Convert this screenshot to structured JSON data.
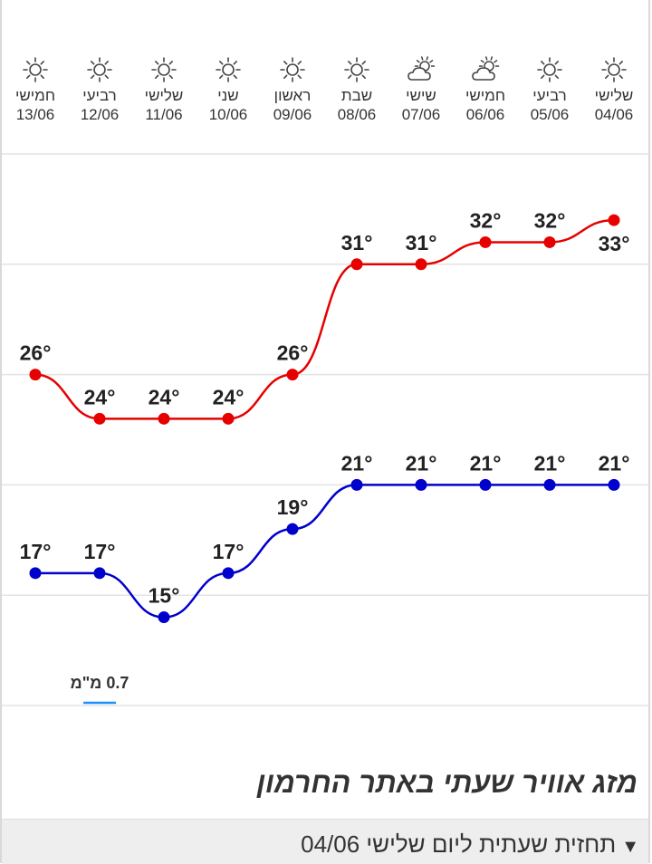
{
  "days": [
    {
      "name": "חמישי",
      "date": "13/06",
      "icon": "sun-icon"
    },
    {
      "name": "רביעי",
      "date": "12/06",
      "icon": "sun-icon"
    },
    {
      "name": "שלישי",
      "date": "11/06",
      "icon": "sun-icon"
    },
    {
      "name": "שני",
      "date": "10/06",
      "icon": "sun-icon"
    },
    {
      "name": "ראשון",
      "date": "09/06",
      "icon": "sun-icon"
    },
    {
      "name": "שבת",
      "date": "08/06",
      "icon": "sun-icon"
    },
    {
      "name": "שישי",
      "date": "07/06",
      "icon": "partly-cloudy-icon"
    },
    {
      "name": "חמישי",
      "date": "06/06",
      "icon": "partly-cloudy-icon"
    },
    {
      "name": "רביעי",
      "date": "05/06",
      "icon": "sun-icon"
    },
    {
      "name": "שלישי",
      "date": "04/06",
      "icon": "sun-icon"
    }
  ],
  "chart_data": {
    "type": "line",
    "categories": [
      "13/06",
      "12/06",
      "11/06",
      "10/06",
      "09/06",
      "08/06",
      "07/06",
      "06/06",
      "05/06",
      "04/06"
    ],
    "series": [
      {
        "values": [
          26,
          24,
          24,
          24,
          26,
          31,
          31,
          32,
          32,
          33
        ],
        "color": "#e60000"
      },
      {
        "values": [
          17,
          17,
          15,
          17,
          19,
          21,
          21,
          21,
          21,
          21
        ],
        "color": "#0000cc"
      }
    ],
    "unit_label": "°",
    "ylim": [
      11,
      36
    ],
    "grid": true,
    "precipitation": {
      "category": "12/06",
      "label": "0.7 מ\"מ",
      "color": "#1e90ff"
    }
  },
  "title": "מזג אוויר שעתי באתר החרמון",
  "forecast": {
    "arrow": "▼",
    "label": "תחזית שעתית ליום שלישי 04/06"
  }
}
